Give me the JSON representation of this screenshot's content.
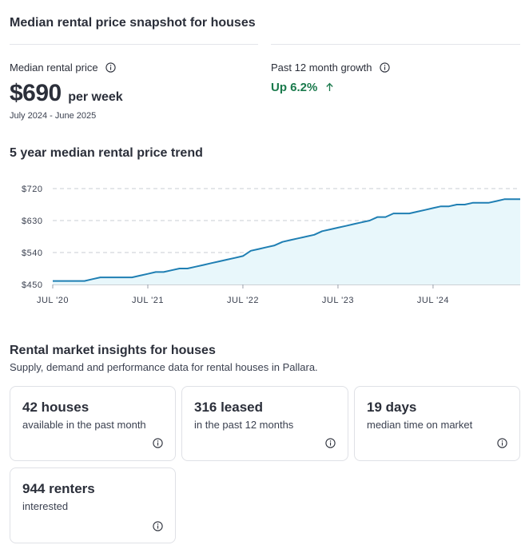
{
  "snapshot": {
    "title": "Median rental price snapshot for houses",
    "median_label": "Median rental price",
    "price": "$690",
    "per_week": "per week",
    "date_range": "July 2024 - June 2025",
    "growth_label": "Past 12 month growth",
    "growth_value": "Up 6.2%",
    "growth_color": "#1a7a4c"
  },
  "trend": {
    "title": "5 year median rental price trend"
  },
  "chart_data": {
    "type": "area",
    "title": "",
    "xlabel": "",
    "ylabel": "",
    "ylim": [
      450,
      720
    ],
    "y_ticks": [
      450,
      540,
      630,
      720
    ],
    "y_tick_labels": [
      "$450",
      "$540",
      "$630",
      "$720"
    ],
    "x_tick_labels": [
      "JUL '20",
      "JUL '21",
      "JUL '22",
      "JUL '23",
      "JUL '24"
    ],
    "x_tick_months": [
      0,
      12,
      24,
      36,
      48
    ],
    "x_range_months": [
      0,
      59
    ],
    "grid": true,
    "line_color": "#1f7fb3",
    "fill_color": "#e8f7fb",
    "series": [
      {
        "x_months": [
          0,
          4,
          5,
          6,
          7,
          10,
          11,
          12,
          13,
          14,
          15,
          16,
          17,
          18,
          19,
          20,
          21,
          22,
          23,
          24,
          25,
          26,
          27,
          28,
          29,
          30,
          31,
          32,
          33,
          34,
          35,
          36,
          37,
          38,
          39,
          40,
          41,
          42,
          43,
          44,
          45,
          46,
          47,
          48,
          49,
          50,
          51,
          52,
          53,
          54,
          55,
          56,
          57,
          58,
          59
        ],
        "values": [
          460,
          460,
          465,
          470,
          470,
          470,
          475,
          480,
          485,
          485,
          490,
          495,
          495,
          500,
          505,
          510,
          515,
          520,
          525,
          530,
          545,
          550,
          555,
          560,
          570,
          575,
          580,
          585,
          590,
          600,
          605,
          610,
          615,
          620,
          625,
          630,
          640,
          640,
          650,
          650,
          650,
          655,
          660,
          665,
          670,
          670,
          675,
          675,
          680,
          680,
          680,
          685,
          690,
          690,
          690
        ]
      }
    ]
  },
  "insights": {
    "title": "Rental market insights for houses",
    "subtitle": "Supply, demand and performance data for rental houses in Pallara.",
    "cards": [
      {
        "value": "42 houses",
        "label": "available in the past month"
      },
      {
        "value": "316 leased",
        "label": "in the past 12 months"
      },
      {
        "value": "19 days",
        "label": "median time on market"
      },
      {
        "value": "944 renters",
        "label": "interested"
      }
    ]
  },
  "icons": {
    "info": "info-icon",
    "arrow_up": "arrow-up-icon"
  }
}
